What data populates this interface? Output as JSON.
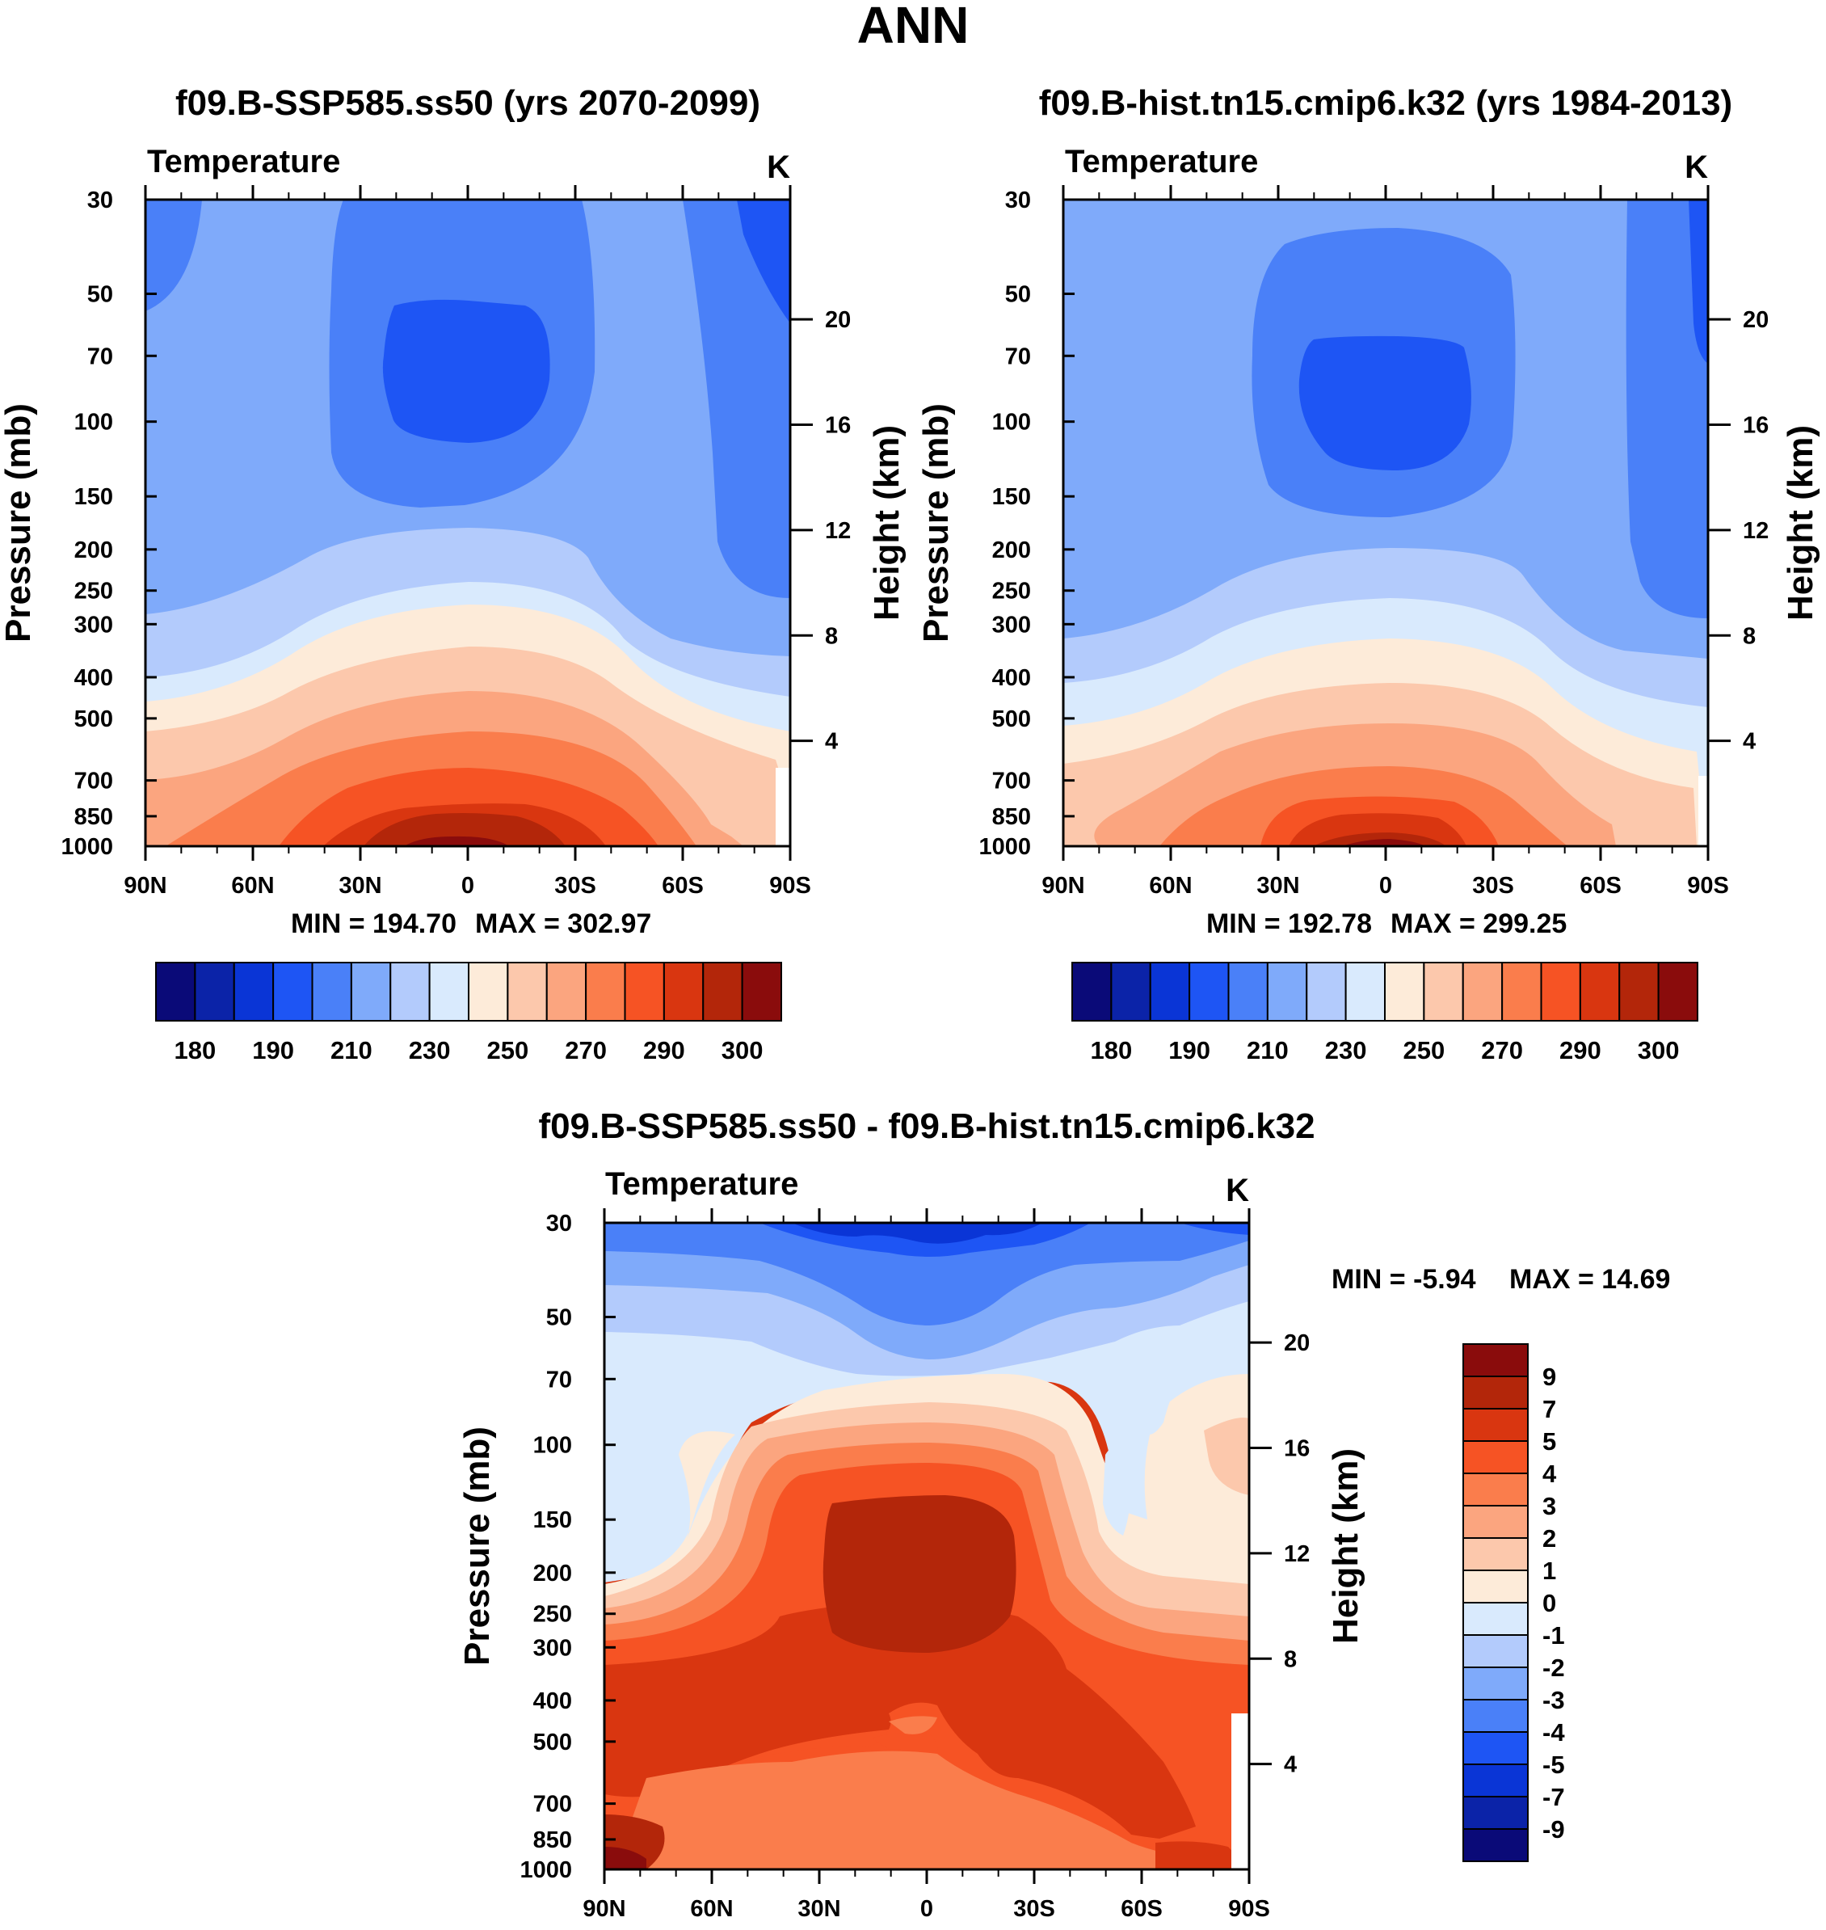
{
  "figure": {
    "title": "ANN"
  },
  "colors": {
    "abs_scale": [
      "#0a0a78",
      "#0b23a8",
      "#0a35d6",
      "#1e55f4",
      "#4a80f8",
      "#7faafa",
      "#b3cbfc",
      "#d9eafd",
      "#fdebd9",
      "#fcc8ac",
      "#fba57f",
      "#fa7d4c",
      "#f65324",
      "#d93610",
      "#b3260a",
      "#8a0c0c"
    ],
    "diff_scale": [
      "#8a0c0c",
      "#b3260a",
      "#d93610",
      "#f65324",
      "#fa7d4c",
      "#fba57f",
      "#fcc8ac",
      "#fdebd9",
      "#d9eafd",
      "#b3cbfc",
      "#7faafa",
      "#4a80f8",
      "#1e55f4",
      "#0a35d6",
      "#0b23a8",
      "#0a0a78"
    ]
  },
  "chart_data": [
    {
      "type": "contour",
      "title": "f09.B-SSP585.ss50 (yrs 2070-2099)",
      "variable": "Temperature",
      "units": "K",
      "xlabel": "",
      "ylabel": "Pressure (mb)",
      "y2label": "Height (km)",
      "x_ticks": [
        "90N",
        "60N",
        "30N",
        "0",
        "30S",
        "60S",
        "90S"
      ],
      "y_ticks": [
        30,
        50,
        70,
        100,
        150,
        200,
        250,
        300,
        400,
        500,
        700,
        850,
        1000
      ],
      "y2_ticks": [
        20,
        16,
        12,
        8,
        4
      ],
      "min_label": "MIN = 194.70",
      "max_label": "MAX = 302.97",
      "min": 194.7,
      "max": 302.97,
      "colorbar_labels": [
        "180",
        "190",
        "210",
        "230",
        "250",
        "270",
        "290",
        "300"
      ]
    },
    {
      "type": "contour",
      "title": "f09.B-hist.tn15.cmip6.k32 (yrs 1984-2013)",
      "variable": "Temperature",
      "units": "K",
      "xlabel": "",
      "ylabel": "Pressure (mb)",
      "y2label": "Height (km)",
      "x_ticks": [
        "90N",
        "60N",
        "30N",
        "0",
        "30S",
        "60S",
        "90S"
      ],
      "y_ticks": [
        30,
        50,
        70,
        100,
        150,
        200,
        250,
        300,
        400,
        500,
        700,
        850,
        1000
      ],
      "y2_ticks": [
        20,
        16,
        12,
        8,
        4
      ],
      "min_label": "MIN = 192.78",
      "max_label": "MAX = 299.25",
      "min": 192.78,
      "max": 299.25,
      "colorbar_labels": [
        "180",
        "190",
        "210",
        "230",
        "250",
        "270",
        "290",
        "300"
      ]
    },
    {
      "type": "contour",
      "title": "f09.B-SSP585.ss50 - f09.B-hist.tn15.cmip6.k32",
      "variable": "Temperature",
      "units": "K",
      "xlabel": "",
      "ylabel": "Pressure (mb)",
      "y2label": "Height (km)",
      "x_ticks": [
        "90N",
        "60N",
        "30N",
        "0",
        "30S",
        "60S",
        "90S"
      ],
      "y_ticks": [
        30,
        50,
        70,
        100,
        150,
        200,
        250,
        300,
        400,
        500,
        700,
        850,
        1000
      ],
      "y2_ticks": [
        20,
        16,
        12,
        8,
        4
      ],
      "min_label": "MIN =  -5.94",
      "max_label": "MAX =  14.69",
      "min": -5.94,
      "max": 14.69,
      "colorbar_labels": [
        "9",
        "7",
        "5",
        "4",
        "3",
        "2",
        "1",
        "0",
        "-1",
        "-2",
        "-3",
        "-4",
        "-5",
        "-7",
        "-9"
      ]
    }
  ]
}
